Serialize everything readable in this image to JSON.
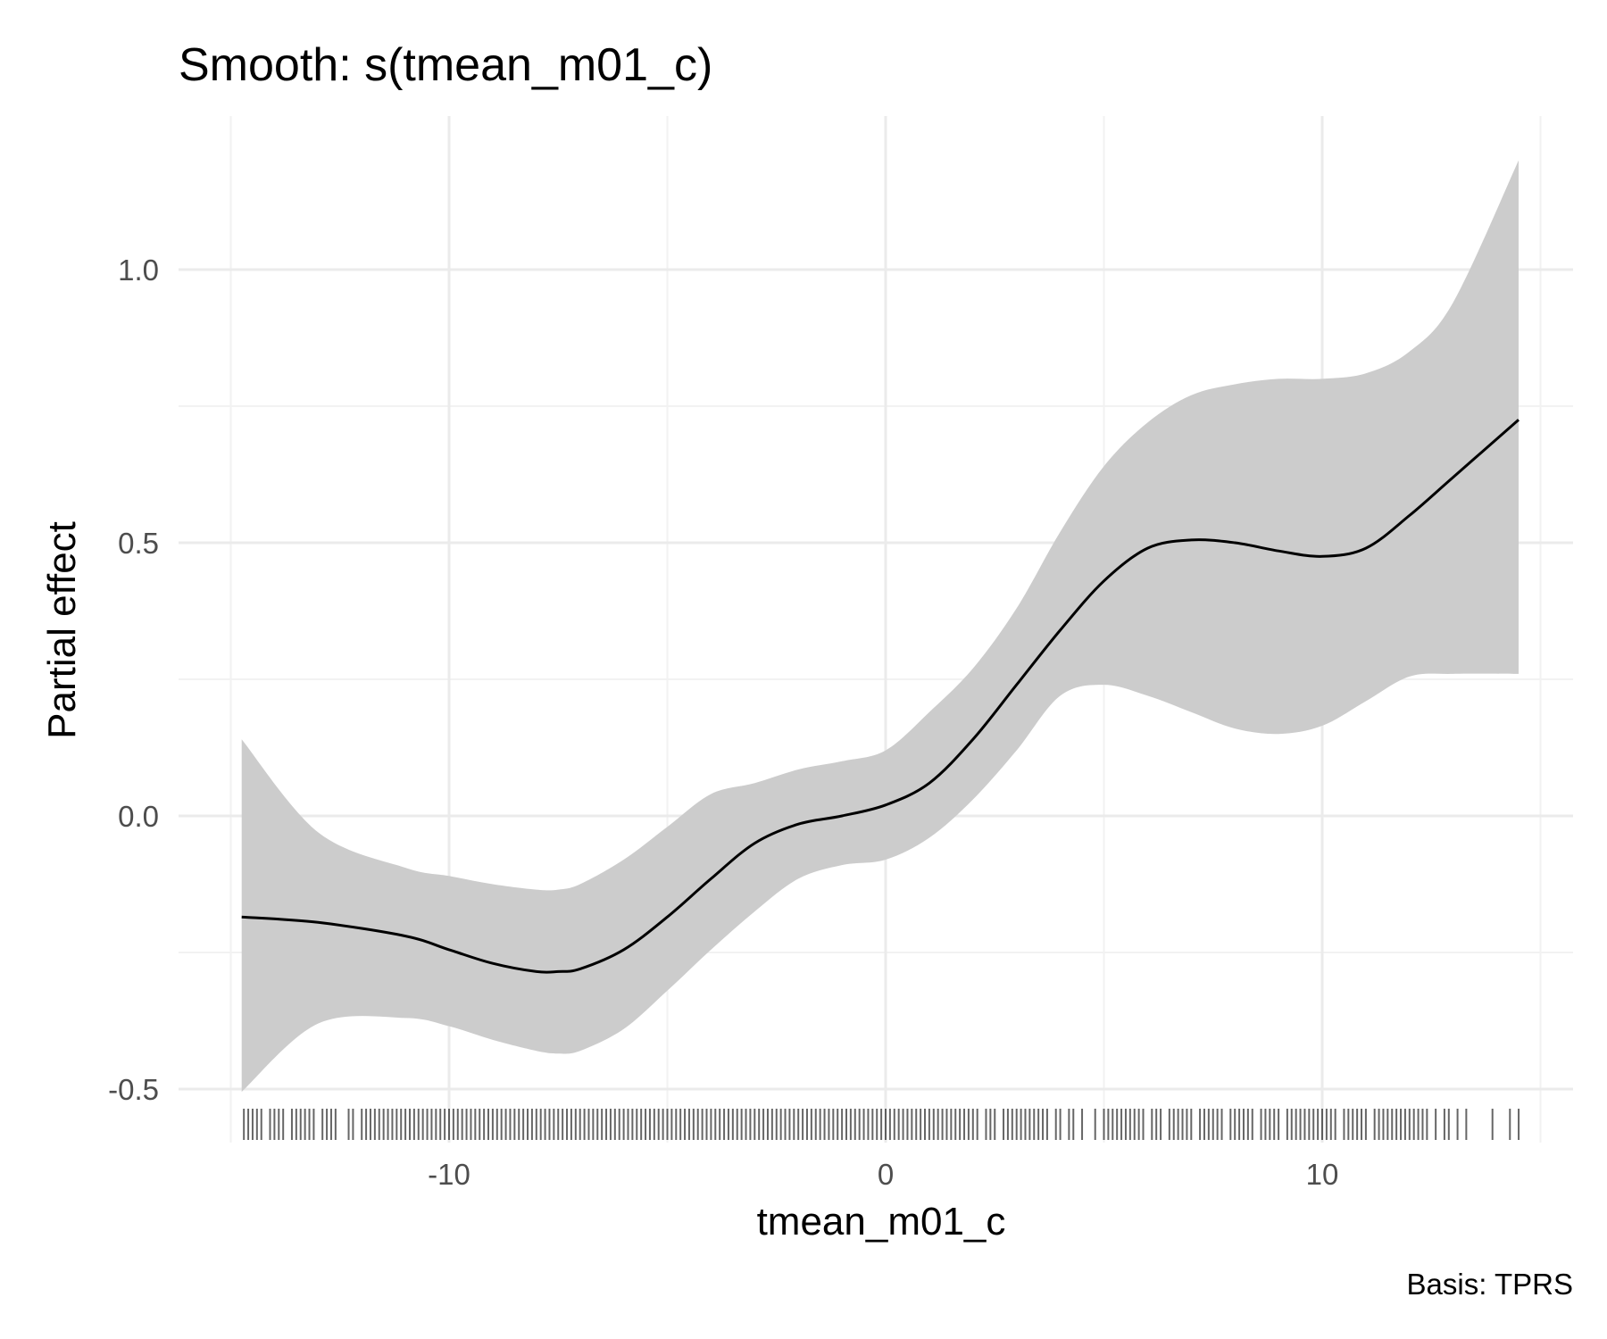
{
  "chart_data": {
    "type": "line",
    "title": "Smooth: s(tmean_m01_c)",
    "xlabel": "tmean_m01_c",
    "ylabel": "Partial effect",
    "caption": "Basis: TPRS",
    "xlim": [
      -15.4,
      15.5
    ],
    "ylim": [
      -0.56,
      1.26
    ],
    "x_ticks": [
      -10,
      0,
      10
    ],
    "x_tick_labels": [
      "-10",
      "0",
      "10"
    ],
    "x_minor_ticks": [
      -15,
      -5,
      5,
      15
    ],
    "y_ticks": [
      -0.5,
      0.0,
      0.5,
      1.0
    ],
    "y_tick_labels": [
      "-0.5",
      "0.0",
      "0.5",
      "1.0"
    ],
    "y_minor_ticks": [
      -0.25,
      0.25,
      0.75
    ],
    "grid": true,
    "legend": "none",
    "colors": {
      "line": "#000000",
      "ribbon": "#cccccc",
      "rug": "#000000",
      "grid": "#ebebeb"
    },
    "series": [
      {
        "x": [
          -14.75,
          -13,
          -11,
          -10,
          -9,
          -8,
          -7.5,
          -7,
          -6,
          -5,
          -4,
          -3,
          -2,
          -1,
          0,
          1,
          2,
          3,
          4,
          5,
          6,
          7,
          8,
          9,
          10,
          11,
          12,
          13,
          14.5
        ],
        "y": [
          -0.185,
          -0.195,
          -0.22,
          -0.245,
          -0.27,
          -0.285,
          -0.285,
          -0.28,
          -0.245,
          -0.185,
          -0.115,
          -0.05,
          -0.015,
          0.0,
          0.02,
          0.06,
          0.14,
          0.24,
          0.34,
          0.43,
          0.49,
          0.505,
          0.5,
          0.485,
          0.475,
          0.49,
          0.55,
          0.62,
          0.725
        ],
        "lower": [
          -0.505,
          -0.38,
          -0.37,
          -0.385,
          -0.41,
          -0.43,
          -0.435,
          -0.43,
          -0.39,
          -0.32,
          -0.245,
          -0.175,
          -0.115,
          -0.09,
          -0.08,
          -0.04,
          0.03,
          0.12,
          0.22,
          0.24,
          0.22,
          0.19,
          0.16,
          0.15,
          0.165,
          0.21,
          0.255,
          0.26,
          0.26
        ],
        "upper": [
          0.14,
          -0.03,
          -0.095,
          -0.11,
          -0.125,
          -0.135,
          -0.135,
          -0.125,
          -0.08,
          -0.02,
          0.04,
          0.06,
          0.085,
          0.1,
          0.12,
          0.19,
          0.27,
          0.38,
          0.52,
          0.64,
          0.72,
          0.77,
          0.79,
          0.8,
          0.8,
          0.81,
          0.85,
          0.94,
          1.2
        ]
      }
    ],
    "rug_x": [
      -14.7,
      -14.6,
      -14.5,
      -14.4,
      -14.3,
      -14.1,
      -14.0,
      -13.9,
      -13.8,
      -13.6,
      -13.5,
      -13.4,
      -13.3,
      -13.2,
      -13.1,
      -12.9,
      -12.8,
      -12.7,
      -12.6,
      -12.3,
      -12.2,
      -12.0,
      -11.9,
      -11.8,
      -11.7,
      -11.6,
      -11.5,
      -11.4,
      -11.3,
      -11.2,
      -11.1,
      -11.0,
      -10.9,
      -10.8,
      -10.7,
      -10.6,
      -10.5,
      -10.4,
      -10.3,
      -10.2,
      -10.1,
      -10.0,
      -9.9,
      -9.8,
      -9.7,
      -9.6,
      -9.5,
      -9.4,
      -9.3,
      -9.2,
      -9.1,
      -9.0,
      -8.9,
      -8.8,
      -8.7,
      -8.6,
      -8.5,
      -8.4,
      -8.3,
      -8.2,
      -8.1,
      -8.0,
      -7.9,
      -7.8,
      -7.7,
      -7.6,
      -7.5,
      -7.4,
      -7.3,
      -7.2,
      -7.1,
      -7.0,
      -6.9,
      -6.8,
      -6.7,
      -6.6,
      -6.5,
      -6.4,
      -6.3,
      -6.2,
      -6.1,
      -6.0,
      -5.9,
      -5.8,
      -5.7,
      -5.6,
      -5.5,
      -5.4,
      -5.3,
      -5.2,
      -5.1,
      -5.0,
      -4.9,
      -4.8,
      -4.7,
      -4.6,
      -4.5,
      -4.4,
      -4.3,
      -4.2,
      -4.1,
      -4.0,
      -3.9,
      -3.8,
      -3.7,
      -3.6,
      -3.5,
      -3.4,
      -3.3,
      -3.2,
      -3.1,
      -3.0,
      -2.9,
      -2.8,
      -2.7,
      -2.6,
      -2.5,
      -2.4,
      -2.3,
      -2.2,
      -2.1,
      -2.0,
      -1.9,
      -1.8,
      -1.7,
      -1.6,
      -1.5,
      -1.4,
      -1.3,
      -1.2,
      -1.1,
      -1.0,
      -0.9,
      -0.8,
      -0.7,
      -0.6,
      -0.5,
      -0.4,
      -0.3,
      -0.2,
      -0.1,
      0.0,
      0.1,
      0.2,
      0.3,
      0.4,
      0.5,
      0.6,
      0.7,
      0.8,
      0.9,
      1.0,
      1.1,
      1.2,
      1.3,
      1.4,
      1.5,
      1.6,
      1.7,
      1.8,
      1.9,
      2.0,
      2.1,
      2.3,
      2.4,
      2.5,
      2.7,
      2.8,
      2.9,
      3.0,
      3.1,
      3.2,
      3.3,
      3.4,
      3.5,
      3.6,
      3.7,
      3.9,
      4.0,
      4.2,
      4.3,
      4.5,
      4.8,
      5.0,
      5.1,
      5.2,
      5.3,
      5.4,
      5.5,
      5.6,
      5.7,
      5.8,
      5.9,
      6.1,
      6.2,
      6.3,
      6.5,
      6.6,
      6.7,
      6.8,
      6.9,
      7.0,
      7.2,
      7.3,
      7.4,
      7.5,
      7.6,
      7.7,
      7.9,
      8.0,
      8.1,
      8.2,
      8.3,
      8.4,
      8.6,
      8.7,
      8.8,
      8.9,
      9.0,
      9.2,
      9.3,
      9.4,
      9.5,
      9.6,
      9.7,
      9.8,
      9.9,
      10.0,
      10.1,
      10.2,
      10.3,
      10.5,
      10.6,
      10.7,
      10.8,
      10.9,
      11.0,
      11.2,
      11.3,
      11.4,
      11.5,
      11.6,
      11.7,
      11.8,
      11.9,
      12.0,
      12.1,
      12.2,
      12.3,
      12.4,
      12.6,
      12.8,
      12.9,
      13.1,
      13.3,
      13.9,
      14.3,
      14.5
    ]
  }
}
